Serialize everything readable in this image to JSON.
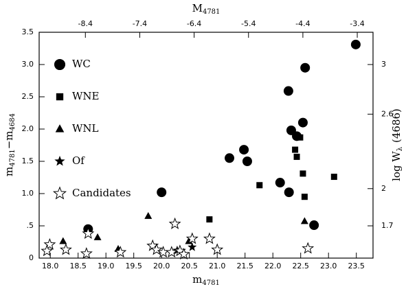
{
  "chart_data": {
    "type": "scatter",
    "x_label": {
      "text": "m",
      "sub": "4781"
    },
    "x2_label": {
      "text": "M",
      "sub": "4781"
    },
    "y_label": {
      "text1": "m",
      "sub1": "4781",
      "text2": "−m",
      "sub2": "4684"
    },
    "y2_label": {
      "text": "log W",
      "sub": "λ",
      "tail": "(4686)"
    },
    "xlim": [
      17.8,
      23.8
    ],
    "xticks": [
      {
        "value": 18.0,
        "label": "18.0"
      },
      18.5,
      {
        "value": 19.0,
        "label": "19.0"
      },
      19.5,
      {
        "value": 20.0,
        "label": "20.0"
      },
      20.5,
      {
        "value": 21.0,
        "label": "21.0"
      },
      21.5,
      {
        "value": 22.0,
        "label": "22.0"
      },
      22.5,
      {
        "value": 23.0,
        "label": "23.0"
      },
      23.5
    ],
    "x2lim": [
      -9.25,
      -3.11
    ],
    "x2ticks": [
      -8.4,
      -7.4,
      -6.4,
      -5.4,
      -4.4,
      -3.4
    ],
    "ylim": [
      0,
      3.5
    ],
    "yticks": [
      0,
      {
        "value": 0.5,
        "label": ".5"
      },
      {
        "value": 1.0,
        "label": "1.0"
      },
      1.5,
      {
        "value": 2.0,
        "label": "2.0"
      },
      2.5,
      {
        "value": 3.0,
        "label": "3.0"
      },
      3.5
    ],
    "y2lim": [
      1.44,
      3.26
    ],
    "y2ticks": [
      3,
      2.6,
      2,
      1.7
    ],
    "series": [
      {
        "name": "WC",
        "marker": "circle",
        "color": "#000000",
        "x": [
          18.68,
          20.0,
          21.22,
          21.48,
          21.54,
          22.13,
          22.29,
          22.28,
          22.33,
          22.43,
          22.54,
          22.58,
          22.74,
          23.49
        ],
        "values": [
          0.45,
          1.02,
          1.55,
          1.68,
          1.5,
          1.17,
          1.02,
          2.59,
          1.98,
          1.89,
          2.1,
          2.95,
          0.51,
          3.31
        ]
      },
      {
        "name": "WNE",
        "marker": "square",
        "color": "#000000",
        "x": [
          20.86,
          21.76,
          22.4,
          22.43,
          22.49,
          22.54,
          22.57,
          23.1
        ],
        "values": [
          0.6,
          1.13,
          1.68,
          1.57,
          1.87,
          1.31,
          0.95,
          1.26
        ]
      },
      {
        "name": "WNL",
        "marker": "triangle",
        "color": "#000000",
        "x": [
          18.23,
          18.85,
          19.22,
          19.76,
          20.49,
          22.57
        ],
        "values": [
          0.26,
          0.32,
          0.14,
          0.65,
          0.26,
          0.57
        ]
      },
      {
        "name": "Of",
        "marker": "star",
        "color": "#000000",
        "x": [
          20.55,
          20.28
        ],
        "values": [
          0.17,
          0.12
        ]
      },
      {
        "name": "Candidates",
        "marker": "open-star",
        "color": "#000000",
        "x": [
          17.99,
          17.94,
          18.28,
          18.65,
          18.68,
          19.26,
          19.84,
          19.91,
          20.03,
          20.24,
          20.33,
          20.4,
          20.55,
          20.86,
          21.0,
          22.63,
          20.18
        ],
        "values": [
          0.21,
          0.11,
          0.13,
          0.07,
          0.38,
          0.09,
          0.19,
          0.13,
          0.09,
          0.53,
          0.11,
          0.06,
          0.3,
          0.3,
          0.13,
          0.15,
          0.09
        ]
      }
    ]
  }
}
